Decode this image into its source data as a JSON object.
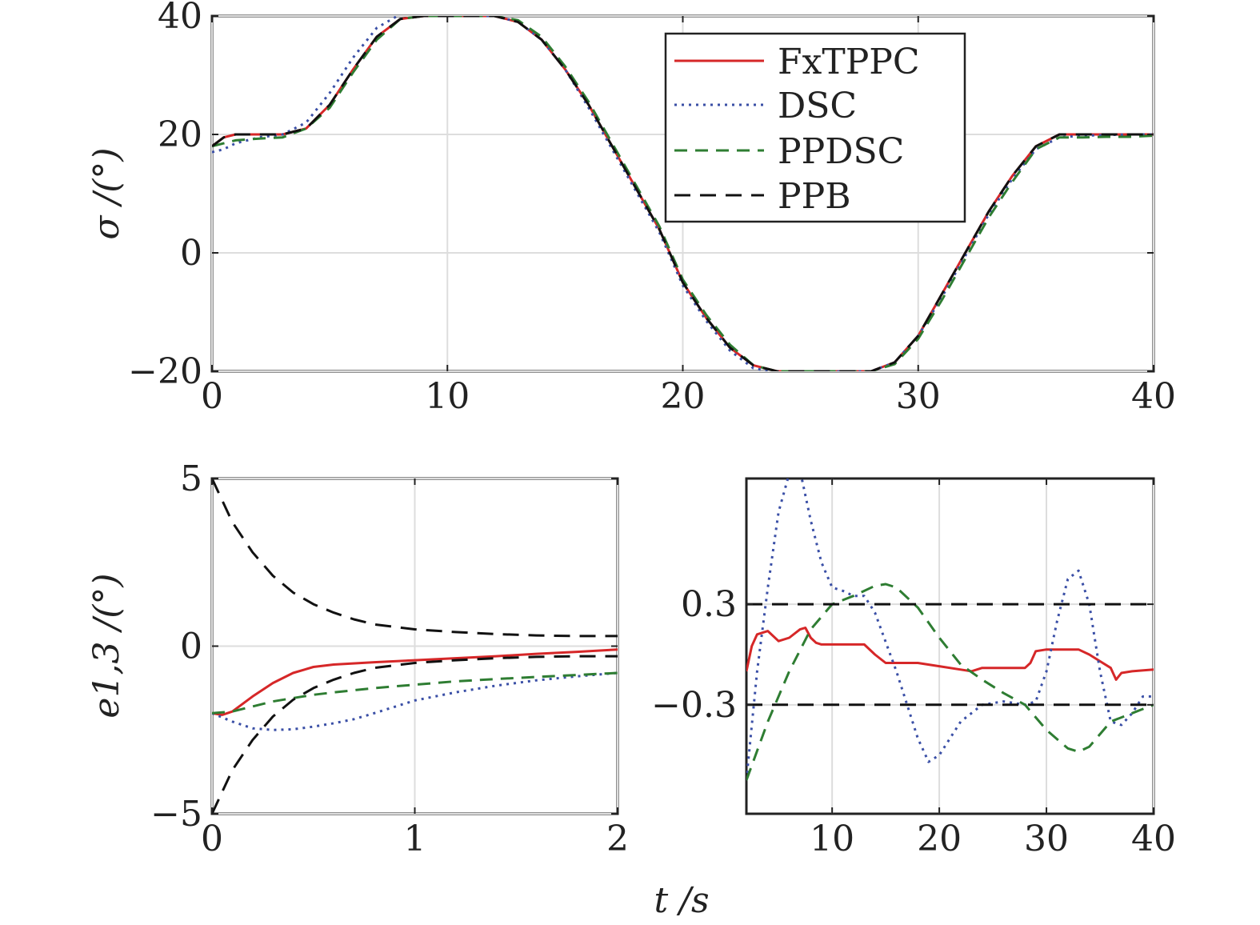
{
  "chart_data": [
    {
      "id": "top",
      "type": "line",
      "ylabel": "σ /(°)",
      "xlim": [
        0,
        40
      ],
      "ylim": [
        -20,
        40
      ],
      "xticks": [
        0,
        10,
        20,
        30,
        40
      ],
      "yticks": [
        -20,
        0,
        20,
        40
      ],
      "xtick_labels": [
        "0",
        "10",
        "20",
        "30",
        "40"
      ],
      "ytick_labels": [
        "−20",
        "0",
        "20",
        "40"
      ],
      "grid": true,
      "legend_position": "top-right",
      "series": [
        {
          "name": "FxTPPC",
          "color": "#d62728",
          "dash": "solid",
          "x": [
            0,
            0.5,
            1,
            2,
            3,
            4,
            5,
            6,
            7,
            8,
            9,
            10,
            11,
            12,
            13,
            14,
            15,
            16,
            17,
            18,
            19,
            20,
            21,
            22,
            23,
            24,
            25,
            26,
            27,
            28,
            29,
            30,
            31,
            32,
            33,
            34,
            35,
            36,
            37,
            38,
            39,
            40
          ],
          "y": [
            18,
            19.5,
            20,
            20,
            20,
            21,
            25,
            31,
            36.5,
            39.5,
            40,
            40,
            40,
            40,
            39,
            36,
            31,
            25,
            18,
            11,
            4,
            -5,
            -11,
            -16,
            -19,
            -20,
            -20,
            -20,
            -20,
            -20,
            -18.5,
            -14,
            -7,
            0,
            7,
            13,
            18,
            20,
            20,
            20,
            20,
            20
          ]
        },
        {
          "name": "DSC",
          "color": "#3a4fa6",
          "dash": "dotted",
          "x": [
            0,
            0.5,
            1,
            2,
            3,
            4,
            5,
            6,
            7,
            8,
            9,
            10,
            11,
            12,
            13,
            14,
            15,
            16,
            17,
            18,
            19,
            20,
            21,
            22,
            23,
            24,
            25,
            26,
            27,
            28,
            29,
            30,
            31,
            32,
            33,
            34,
            35,
            36,
            37,
            38,
            39,
            40
          ],
          "y": [
            17,
            17.5,
            18.5,
            19.5,
            20,
            22,
            27,
            33,
            38,
            40.3,
            40.3,
            40.1,
            40,
            40,
            39,
            36,
            31,
            24.5,
            17.5,
            10.5,
            3.5,
            -5.5,
            -11.5,
            -16.5,
            -19.5,
            -20.2,
            -20.2,
            -20.1,
            -20,
            -20,
            -18.5,
            -14,
            -7.5,
            -0.5,
            6.5,
            12.5,
            17.5,
            19.5,
            19.8,
            19.9,
            20,
            20
          ]
        },
        {
          "name": "PPDSC",
          "color": "#2e7d32",
          "dash": "dashed",
          "x": [
            0,
            0.5,
            1,
            2,
            3,
            4,
            5,
            6,
            7,
            8,
            9,
            10,
            11,
            12,
            13,
            14,
            15,
            16,
            17,
            18,
            19,
            20,
            21,
            22,
            23,
            24,
            25,
            26,
            27,
            28,
            29,
            30,
            31,
            32,
            33,
            34,
            35,
            36,
            37,
            38,
            39,
            40
          ],
          "y": [
            18,
            18.5,
            19,
            19.3,
            19.5,
            21,
            24.5,
            30.5,
            36,
            39.5,
            40,
            40,
            40,
            40,
            39.3,
            36.5,
            31.5,
            25.5,
            18.5,
            11.5,
            4.5,
            -4.5,
            -10.5,
            -15.5,
            -19,
            -20,
            -20,
            -20,
            -20,
            -20,
            -18.8,
            -14.5,
            -8,
            -1,
            6,
            12,
            17.5,
            19.5,
            19.5,
            19.6,
            19.6,
            19.8
          ]
        },
        {
          "name": "PPB",
          "color": "#111111",
          "dash": "longdash",
          "x": [
            0,
            0.5,
            1,
            2,
            3,
            4,
            5,
            6,
            7,
            8,
            9,
            10,
            11,
            12,
            13,
            14,
            15,
            16,
            17,
            18,
            19,
            20,
            21,
            22,
            23,
            24,
            25,
            26,
            27,
            28,
            29,
            30,
            31,
            32,
            33,
            34,
            35,
            36,
            37,
            38,
            39,
            40
          ],
          "y": [
            18,
            19.5,
            20,
            20,
            20,
            21,
            25,
            31,
            36.5,
            39.5,
            40,
            40,
            40,
            40,
            39,
            36,
            31,
            25,
            18,
            11,
            4,
            -5,
            -11,
            -16,
            -19,
            -20,
            -20,
            -20,
            -20,
            -20,
            -18.5,
            -14,
            -7,
            0,
            7,
            13,
            18,
            20,
            20,
            20,
            20,
            20
          ]
        }
      ]
    },
    {
      "id": "bottom-left",
      "type": "line",
      "ylabel": "e1,3 /(°)",
      "xlim": [
        0,
        2
      ],
      "ylim": [
        -5,
        5
      ],
      "xticks": [
        0,
        1,
        2
      ],
      "yticks": [
        -5,
        0,
        5
      ],
      "xtick_labels": [
        "0",
        "1",
        "2"
      ],
      "ytick_labels": [
        "−5",
        "0",
        "5"
      ],
      "grid": true,
      "series": [
        {
          "name": "FxTPPC",
          "color": "#d62728",
          "dash": "solid",
          "x": [
            0,
            0.05,
            0.1,
            0.2,
            0.3,
            0.4,
            0.5,
            0.6,
            0.8,
            1.0,
            1.2,
            1.4,
            1.6,
            1.8,
            2.0
          ],
          "y": [
            -2,
            -2.05,
            -1.95,
            -1.5,
            -1.1,
            -0.8,
            -0.62,
            -0.55,
            -0.48,
            -0.42,
            -0.36,
            -0.3,
            -0.23,
            -0.17,
            -0.1
          ]
        },
        {
          "name": "DSC",
          "color": "#3a4fa6",
          "dash": "dotted",
          "x": [
            0,
            0.1,
            0.2,
            0.3,
            0.4,
            0.5,
            0.6,
            0.7,
            0.8,
            1.0,
            1.2,
            1.4,
            1.6,
            1.8,
            2.0
          ],
          "y": [
            -2,
            -2.25,
            -2.45,
            -2.5,
            -2.48,
            -2.4,
            -2.3,
            -2.18,
            -2.0,
            -1.62,
            -1.38,
            -1.18,
            -1.02,
            -0.9,
            -0.8
          ]
        },
        {
          "name": "PPDSC",
          "color": "#2e7d32",
          "dash": "dashed",
          "x": [
            0,
            0.1,
            0.2,
            0.3,
            0.4,
            0.5,
            0.6,
            0.8,
            1.0,
            1.2,
            1.4,
            1.6,
            1.8,
            2.0
          ],
          "y": [
            -2,
            -1.95,
            -1.8,
            -1.65,
            -1.55,
            -1.45,
            -1.38,
            -1.25,
            -1.15,
            -1.05,
            -0.98,
            -0.92,
            -0.86,
            -0.8
          ]
        },
        {
          "name": "PPB upper",
          "color": "#111111",
          "dash": "longdash",
          "x": [
            0,
            0.1,
            0.2,
            0.3,
            0.4,
            0.5,
            0.6,
            0.7,
            0.8,
            1.0,
            1.2,
            1.4,
            1.6,
            1.8,
            2.0
          ],
          "y": [
            5,
            3.7,
            2.8,
            2.1,
            1.6,
            1.25,
            1.0,
            0.8,
            0.65,
            0.5,
            0.42,
            0.36,
            0.32,
            0.3,
            0.3
          ]
        },
        {
          "name": "PPB lower",
          "color": "#111111",
          "dash": "longdash",
          "x": [
            0,
            0.1,
            0.2,
            0.3,
            0.4,
            0.5,
            0.6,
            0.7,
            0.8,
            1.0,
            1.2,
            1.4,
            1.6,
            1.8,
            2.0
          ],
          "y": [
            -5,
            -3.7,
            -2.8,
            -2.1,
            -1.6,
            -1.25,
            -1.0,
            -0.8,
            -0.65,
            -0.5,
            -0.42,
            -0.36,
            -0.32,
            -0.3,
            -0.3
          ]
        }
      ]
    },
    {
      "id": "bottom-right",
      "type": "line",
      "xlabel": "t /s",
      "xlim": [
        2,
        40
      ],
      "ylim": [
        -0.95,
        1.05
      ],
      "xticks": [
        10,
        20,
        30,
        40
      ],
      "yticks": [
        -0.3,
        0.3
      ],
      "xtick_labels": [
        "10",
        "20",
        "30",
        "40"
      ],
      "ytick_labels": [
        "−0.3",
        "0.3"
      ],
      "grid": true,
      "series": [
        {
          "name": "FxTPPC",
          "color": "#d62728",
          "dash": "solid",
          "x": [
            2,
            2.5,
            3,
            4,
            5,
            6,
            7,
            7.5,
            8,
            8.5,
            9,
            10,
            11,
            12,
            13,
            14,
            15,
            16,
            18,
            20,
            22,
            23,
            24,
            25,
            26,
            28,
            28.5,
            29,
            30,
            32,
            33,
            34,
            35,
            36,
            36.5,
            37,
            38,
            40
          ],
          "y": [
            -0.1,
            0.05,
            0.12,
            0.14,
            0.08,
            0.1,
            0.15,
            0.16,
            0.1,
            0.07,
            0.06,
            0.06,
            0.06,
            0.06,
            0.06,
            0.0,
            -0.05,
            -0.05,
            -0.05,
            -0.07,
            -0.09,
            -0.1,
            -0.08,
            -0.08,
            -0.08,
            -0.08,
            -0.05,
            0.02,
            0.03,
            0.03,
            0.03,
            0.0,
            -0.04,
            -0.08,
            -0.15,
            -0.11,
            -0.1,
            -0.09
          ]
        },
        {
          "name": "DSC",
          "color": "#3a4fa6",
          "dash": "dotted",
          "x": [
            2,
            3,
            4,
            5,
            6,
            7,
            8,
            9,
            10,
            11,
            12,
            13,
            14,
            16,
            18,
            19,
            20,
            22,
            24,
            26,
            28,
            29,
            30,
            31,
            32,
            33,
            34,
            35,
            36,
            37,
            38,
            39,
            40
          ],
          "y": [
            -0.75,
            -0.1,
            0.4,
            0.85,
            1.08,
            1.1,
            0.8,
            0.55,
            0.4,
            0.38,
            0.35,
            0.35,
            0.25,
            -0.1,
            -0.5,
            -0.64,
            -0.6,
            -0.4,
            -0.3,
            -0.28,
            -0.3,
            -0.28,
            -0.1,
            0.2,
            0.45,
            0.5,
            0.3,
            -0.1,
            -0.4,
            -0.42,
            -0.35,
            -0.25,
            -0.25
          ]
        },
        {
          "name": "PPDSC",
          "color": "#2e7d32",
          "dash": "dashed",
          "x": [
            2,
            4,
            6,
            8,
            10,
            12,
            14,
            15,
            16,
            18,
            20,
            22,
            24,
            26,
            28,
            30,
            32,
            33,
            34,
            36,
            38,
            40
          ],
          "y": [
            -0.75,
            -0.4,
            -0.1,
            0.15,
            0.3,
            0.35,
            0.41,
            0.42,
            0.4,
            0.28,
            0.1,
            -0.06,
            -0.15,
            -0.23,
            -0.3,
            -0.45,
            -0.56,
            -0.58,
            -0.55,
            -0.4,
            -0.35,
            -0.3
          ]
        },
        {
          "name": "PPB upper",
          "color": "#111111",
          "dash": "longdash",
          "x": [
            2,
            40
          ],
          "y": [
            0.3,
            0.3
          ]
        },
        {
          "name": "PPB lower",
          "color": "#111111",
          "dash": "longdash",
          "x": [
            2,
            40
          ],
          "y": [
            -0.3,
            -0.3
          ]
        }
      ]
    }
  ]
}
